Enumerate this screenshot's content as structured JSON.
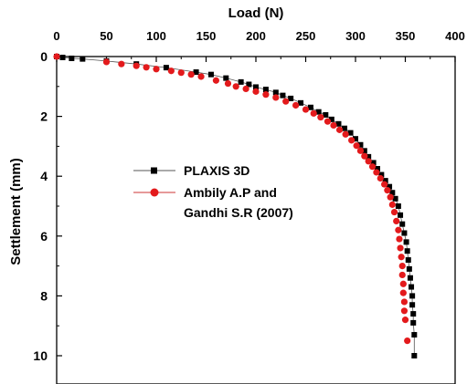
{
  "chart_data": {
    "type": "scatter",
    "title": "",
    "xlabel": "Load (N)",
    "ylabel": "Settlement (mm)",
    "x_axis_position": "top",
    "y_axis_inverted": true,
    "xlim": [
      0,
      400
    ],
    "ylim": [
      0,
      10.9
    ],
    "x_ticks": [
      "0",
      "50",
      "100",
      "150",
      "200",
      "250",
      "300",
      "350",
      "400"
    ],
    "y_ticks": [
      "0",
      "2",
      "4",
      "6",
      "8",
      "10"
    ],
    "grid": false,
    "legend_position": "center-left",
    "series": [
      {
        "name": "PLAXIS 3D",
        "marker": "square",
        "color": "#000000",
        "line_color": "#555555",
        "x": [
          0,
          6,
          15,
          26,
          50,
          80,
          110,
          140,
          155,
          170,
          185,
          193,
          200,
          210,
          220,
          227,
          235,
          245,
          255,
          263,
          270,
          276,
          283,
          289,
          295,
          300,
          305,
          309,
          313,
          318,
          322,
          326,
          330,
          334,
          337,
          340,
          343,
          345,
          347,
          349,
          351,
          352,
          353,
          354,
          355,
          356,
          357,
          357,
          358,
          358,
          359,
          359
        ],
        "y": [
          0,
          0.03,
          0.06,
          0.08,
          0.15,
          0.25,
          0.37,
          0.52,
          0.6,
          0.72,
          0.85,
          0.93,
          1.02,
          1.1,
          1.2,
          1.3,
          1.4,
          1.55,
          1.7,
          1.85,
          1.95,
          2.1,
          2.25,
          2.4,
          2.55,
          2.75,
          2.95,
          3.15,
          3.35,
          3.55,
          3.75,
          3.95,
          4.15,
          4.35,
          4.55,
          4.75,
          5.0,
          5.3,
          5.6,
          5.9,
          6.2,
          6.5,
          6.8,
          7.1,
          7.4,
          7.7,
          8.0,
          8.3,
          8.6,
          8.9,
          9.3,
          10.0
        ]
      },
      {
        "name": "Ambily A.P and Gandhi S.R (2007)",
        "marker": "circle",
        "color": "#e31a1c",
        "x": [
          0,
          50,
          65,
          80,
          90,
          100,
          115,
          125,
          135,
          145,
          160,
          172,
          180,
          190,
          200,
          210,
          220,
          230,
          240,
          250,
          258,
          265,
          272,
          278,
          284,
          290,
          296,
          301,
          305,
          309,
          313,
          317,
          321,
          325,
          329,
          332,
          335,
          337,
          339,
          341,
          343,
          344,
          345,
          346,
          347,
          347,
          348,
          348,
          349,
          349,
          350,
          352
        ],
        "y": [
          0,
          0.18,
          0.25,
          0.31,
          0.36,
          0.42,
          0.48,
          0.54,
          0.6,
          0.67,
          0.8,
          0.9,
          1.0,
          1.08,
          1.17,
          1.27,
          1.37,
          1.5,
          1.63,
          1.77,
          1.9,
          2.03,
          2.17,
          2.3,
          2.45,
          2.6,
          2.8,
          2.98,
          3.15,
          3.33,
          3.5,
          3.68,
          3.87,
          4.07,
          4.27,
          4.47,
          4.7,
          4.95,
          5.2,
          5.5,
          5.8,
          6.1,
          6.4,
          6.7,
          7.0,
          7.3,
          7.6,
          7.9,
          8.2,
          8.5,
          8.8,
          9.5
        ]
      }
    ]
  }
}
